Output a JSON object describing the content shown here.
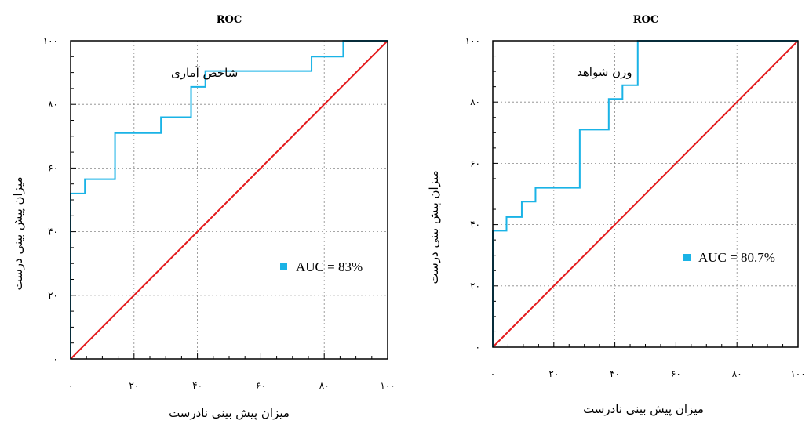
{
  "colors": {
    "roc_curve": "#1ab3e6",
    "reference_line": "#e41a1c",
    "grid": "#888888",
    "axis": "#000000"
  },
  "chart_data": [
    {
      "type": "line",
      "title": "ROC",
      "xlabel": "میزان پیش بینی نادرست",
      "ylabel": "میزان پیش بینی درست",
      "xlim": [
        0,
        100
      ],
      "ylim": [
        0,
        100
      ],
      "x_tick_labels": [
        "۰",
        "۲۰",
        "۴۰",
        "۶۰",
        "۸۰",
        "۱۰۰"
      ],
      "y_tick_labels": [
        "۰",
        "۲۰",
        "۴۰",
        "۶۰",
        "۸۰",
        "۱۰۰"
      ],
      "grid": true,
      "annotation": "شاخص آماری",
      "legend": "AUC = 83%",
      "legend_position": "right-middle",
      "series": [
        {
          "role": "roc",
          "x": [
            0,
            0,
            4.5,
            4.5,
            14,
            14,
            28.5,
            28.5,
            38,
            38,
            42.5,
            42.5,
            76,
            76,
            86,
            86,
            100
          ],
          "y": [
            0,
            52,
            52,
            56.5,
            56.5,
            71,
            71,
            76,
            76,
            85.5,
            85.5,
            90.5,
            90.5,
            95,
            95,
            100,
            100
          ]
        },
        {
          "role": "reference",
          "x": [
            0,
            100
          ],
          "y": [
            0,
            100
          ]
        }
      ]
    },
    {
      "type": "line",
      "title": "ROC",
      "xlabel": "میزان پیش بینی نادرست",
      "ylabel": "میزان پیش بینی درست",
      "xlim": [
        0,
        100
      ],
      "ylim": [
        0,
        100
      ],
      "x_tick_labels": [
        "۰",
        "۲۰",
        "۴۰",
        "۶۰",
        "۸۰",
        "۱۰۰"
      ],
      "y_tick_labels": [
        "۰",
        "۲۰",
        "۴۰",
        "۶۰",
        "۸۰",
        "۱۰۰"
      ],
      "grid": true,
      "annotation": "وزن شواهد",
      "legend": "AUC = 80.7%",
      "legend_position": "right-middle",
      "series": [
        {
          "role": "roc",
          "x": [
            0,
            0,
            4.5,
            4.5,
            9.5,
            9.5,
            14,
            14,
            28.5,
            28.5,
            38,
            38,
            42.5,
            42.5,
            47.5,
            47.5,
            100
          ],
          "y": [
            0,
            38,
            38,
            42.5,
            42.5,
            47.5,
            47.5,
            52,
            52,
            71,
            71,
            81,
            81,
            85.5,
            85.5,
            100,
            100
          ]
        },
        {
          "role": "reference",
          "x": [
            0,
            100
          ],
          "y": [
            0,
            100
          ]
        }
      ]
    }
  ]
}
